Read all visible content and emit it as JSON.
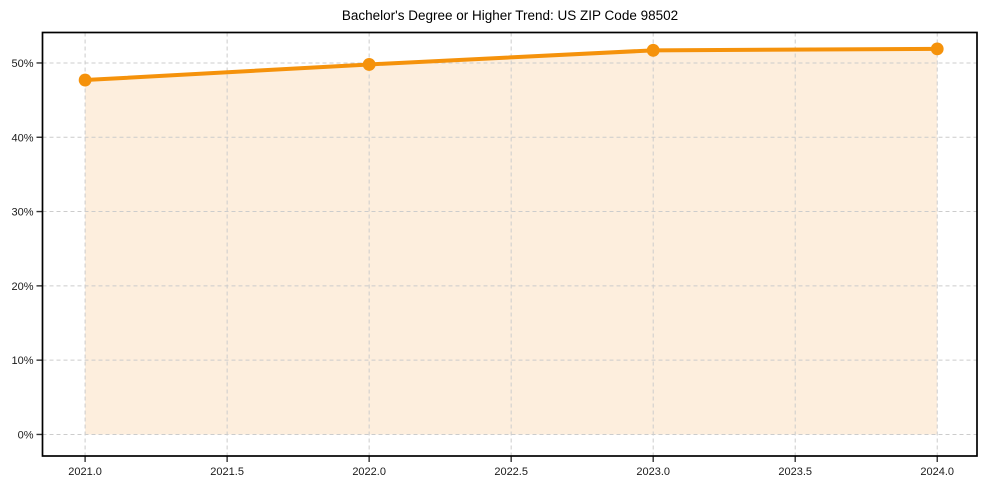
{
  "chart_data": {
    "type": "line",
    "title": "Bachelor's Degree or Higher Trend: US ZIP Code 98502",
    "xlabel": "",
    "ylabel": "",
    "series": [
      {
        "name": "Bachelor's degree or higher (%)",
        "x": [
          2021,
          2022,
          2023,
          2024
        ],
        "values": [
          47.7,
          49.8,
          51.7,
          51.9
        ]
      }
    ],
    "x_tick_values": [
      2021.0,
      2021.5,
      2022.0,
      2022.5,
      2023.0,
      2023.5,
      2024.0
    ],
    "x_tick_labels": [
      "2021.0",
      "2021.5",
      "2022.0",
      "2022.5",
      "2023.0",
      "2023.5",
      "2024.0"
    ],
    "y_tick_values": [
      0,
      10,
      20,
      30,
      40,
      50
    ],
    "y_tick_labels": [
      "0%",
      "10%",
      "20%",
      "30%",
      "40%",
      "50%"
    ],
    "xlim": [
      2020.85,
      2024.14
    ],
    "ylim": [
      -2.9,
      54.1
    ],
    "grid": true,
    "grid_style": "dashed",
    "legend_position": "none",
    "area_fill": true,
    "area_fill_baseline": 0,
    "colors": {
      "line": "#f5920b",
      "marker": "#f5920b",
      "area_fill": "#fdeedd",
      "grid": "#cccccc",
      "spine": "#000000",
      "tick": "#333333",
      "tick_label": "#1a1a1a",
      "title": "#000000",
      "background": "#ffffff"
    }
  }
}
